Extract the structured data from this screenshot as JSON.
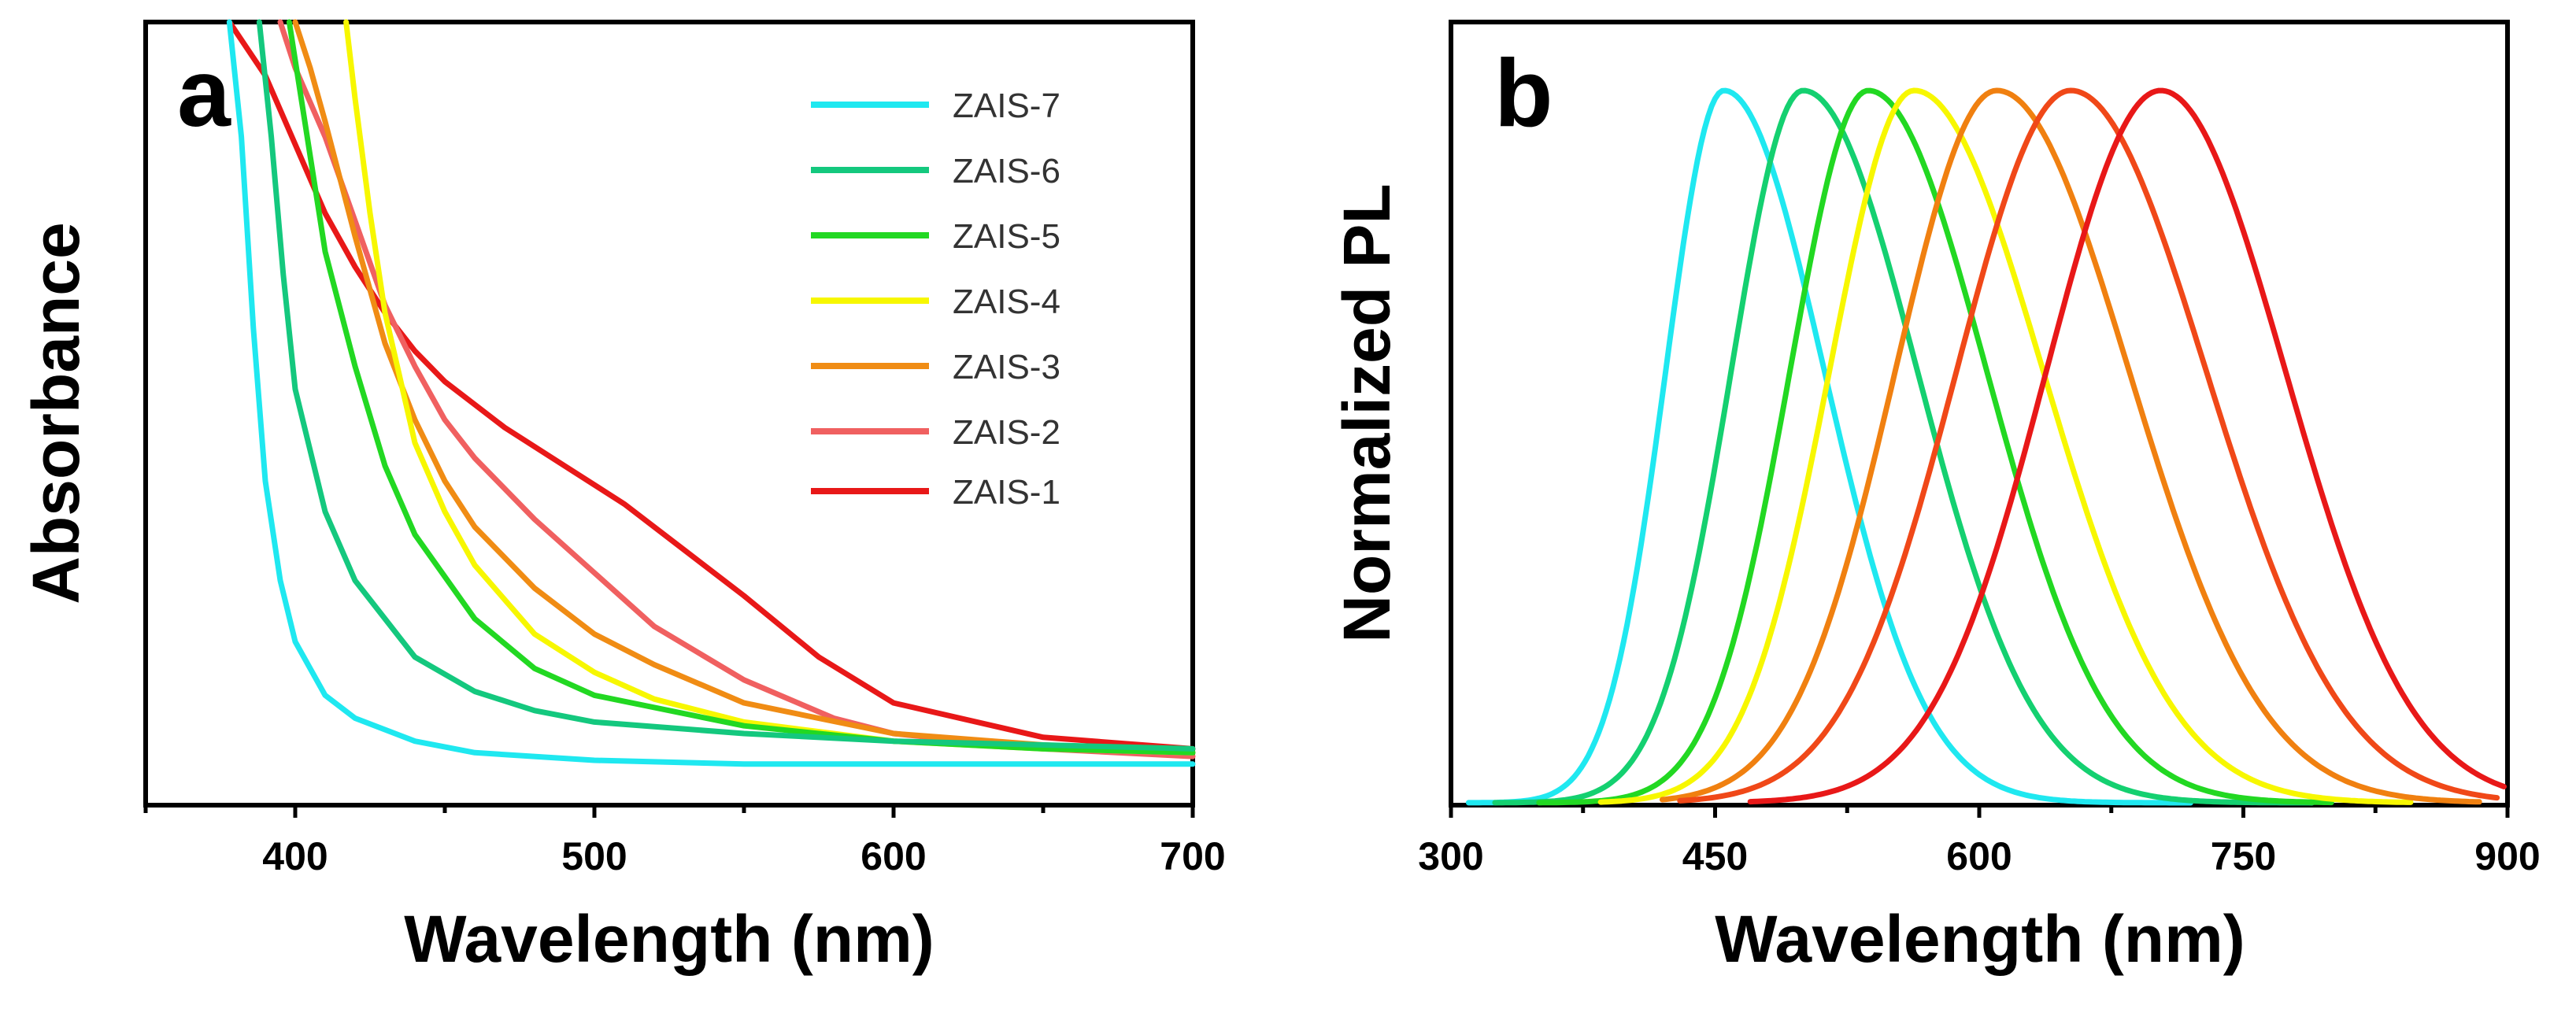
{
  "chart_data": [
    {
      "type": "line",
      "panel_label": "a",
      "title": "",
      "xlabel": "Wavelength (nm)",
      "ylabel": "Absorbance",
      "xlim": [
        350,
        700
      ],
      "ylim": [
        0,
        1
      ],
      "x_ticks": [
        "400",
        "500",
        "600",
        "700"
      ],
      "x_tick_values": [
        400,
        500,
        600,
        700
      ],
      "y_ticks_shown": false,
      "legend_position": "top-right",
      "series": [
        {
          "name": "ZAIS-7",
          "color": "#1fe8f0",
          "x": [
            378,
            382,
            386,
            390,
            395,
            400,
            410,
            420,
            440,
            460,
            500,
            550,
            600,
            650,
            700
          ],
          "values": [
            1.0,
            0.85,
            0.6,
            0.4,
            0.27,
            0.19,
            0.12,
            0.09,
            0.06,
            0.045,
            0.035,
            0.03,
            0.03,
            0.03,
            0.03
          ]
        },
        {
          "name": "ZAIS-6",
          "color": "#14c87e",
          "x": [
            388,
            392,
            396,
            400,
            410,
            420,
            440,
            460,
            480,
            500,
            550,
            600,
            650,
            700
          ],
          "values": [
            1.0,
            0.85,
            0.67,
            0.52,
            0.36,
            0.27,
            0.17,
            0.125,
            0.1,
            0.085,
            0.07,
            0.06,
            0.055,
            0.05
          ]
        },
        {
          "name": "ZAIS-5",
          "color": "#22d822",
          "x": [
            398,
            402,
            406,
            410,
            420,
            430,
            440,
            460,
            480,
            500,
            550,
            600,
            650,
            700
          ],
          "values": [
            1.0,
            0.9,
            0.8,
            0.7,
            0.55,
            0.42,
            0.33,
            0.22,
            0.155,
            0.12,
            0.08,
            0.06,
            0.05,
            0.045
          ]
        },
        {
          "name": "ZAIS-4",
          "color": "#f7f700",
          "x": [
            417,
            420,
            425,
            430,
            440,
            450,
            460,
            480,
            500,
            520,
            550,
            600,
            650,
            700
          ],
          "values": [
            1.0,
            0.9,
            0.75,
            0.62,
            0.45,
            0.36,
            0.29,
            0.2,
            0.15,
            0.115,
            0.085,
            0.06,
            0.05,
            0.045
          ]
        },
        {
          "name": "ZAIS-3",
          "color": "#f08c14",
          "x": [
            400,
            405,
            410,
            420,
            430,
            440,
            450,
            460,
            480,
            500,
            520,
            550,
            600,
            650,
            700
          ],
          "values": [
            1.0,
            0.94,
            0.87,
            0.72,
            0.58,
            0.48,
            0.4,
            0.34,
            0.26,
            0.2,
            0.16,
            0.11,
            0.07,
            0.055,
            0.045
          ]
        },
        {
          "name": "ZAIS-2",
          "color": "#f06060",
          "x": [
            395,
            400,
            410,
            420,
            430,
            440,
            450,
            460,
            480,
            500,
            520,
            550,
            580,
            600,
            650,
            700
          ],
          "values": [
            1.0,
            0.94,
            0.85,
            0.74,
            0.63,
            0.55,
            0.48,
            0.43,
            0.35,
            0.28,
            0.21,
            0.14,
            0.09,
            0.07,
            0.05,
            0.04
          ]
        },
        {
          "name": "ZAIS-1",
          "color": "#e81818",
          "x": [
            378,
            390,
            400,
            410,
            420,
            430,
            440,
            450,
            470,
            490,
            510,
            530,
            550,
            575,
            600,
            650,
            700
          ],
          "values": [
            1.0,
            0.93,
            0.84,
            0.75,
            0.68,
            0.62,
            0.57,
            0.53,
            0.47,
            0.42,
            0.37,
            0.31,
            0.25,
            0.17,
            0.11,
            0.065,
            0.05
          ]
        }
      ]
    },
    {
      "type": "line",
      "panel_label": "b",
      "title": "",
      "xlabel": "Wavelength (nm)",
      "ylabel": "Normalized PL",
      "xlim": [
        300,
        900
      ],
      "ylim": [
        0,
        1
      ],
      "x_ticks": [
        "300",
        "450",
        "600",
        "750",
        "900"
      ],
      "x_tick_values": [
        300,
        450,
        600,
        750,
        900
      ],
      "y_ticks_shown": false,
      "series": [
        {
          "name": "ZAIS-7",
          "color": "#1fe8f0",
          "peak": 455,
          "left_width": 55,
          "right_width": 95,
          "x_start": 310,
          "x_end": 720
        },
        {
          "name": "ZAIS-6",
          "color": "#14d070",
          "peak": 500,
          "left_width": 68,
          "right_width": 108,
          "x_start": 325,
          "x_end": 790
        },
        {
          "name": "ZAIS-5",
          "color": "#22d822",
          "peak": 537,
          "left_width": 74,
          "right_width": 112,
          "x_start": 350,
          "x_end": 800
        },
        {
          "name": "ZAIS-4",
          "color": "#f7f700",
          "peak": 563,
          "left_width": 80,
          "right_width": 122,
          "x_start": 385,
          "x_end": 845
        },
        {
          "name": "ZAIS-3",
          "color": "#f08010",
          "peak": 610,
          "left_width": 96,
          "right_width": 125,
          "x_start": 420,
          "x_end": 885
        },
        {
          "name": "ZAIS-2",
          "color": "#f04818",
          "peak": 652,
          "left_width": 108,
          "right_width": 128,
          "x_start": 430,
          "x_end": 895
        },
        {
          "name": "ZAIS-1",
          "color": "#e81818",
          "peak": 703,
          "left_width": 108,
          "right_width": 118,
          "x_start": 470,
          "x_end": 898
        }
      ]
    }
  ]
}
